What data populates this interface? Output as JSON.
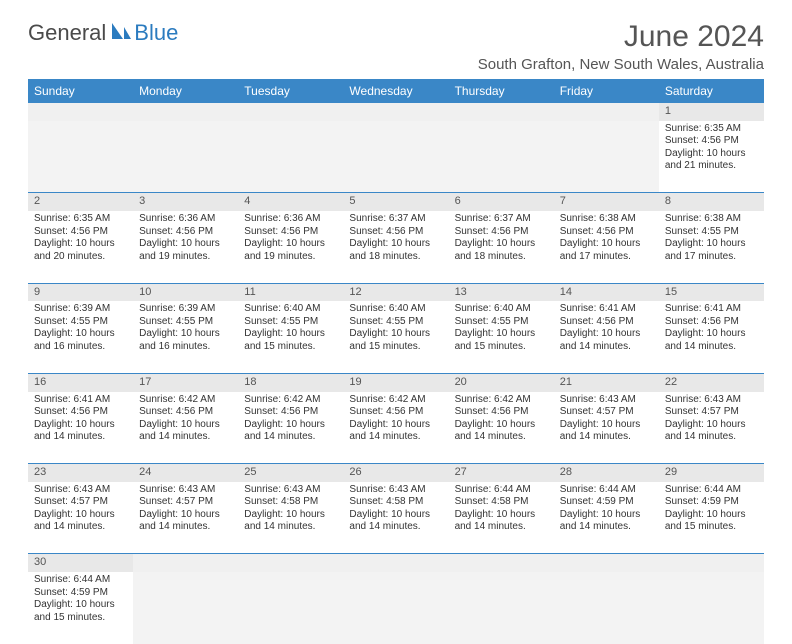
{
  "logo": {
    "part1": "General",
    "part2": "Blue"
  },
  "title": "June 2024",
  "location": "South Grafton, New South Wales, Australia",
  "header_bg": "#3a87c7",
  "daynum_bg": "#e8e8e8",
  "days": [
    "Sunday",
    "Monday",
    "Tuesday",
    "Wednesday",
    "Thursday",
    "Friday",
    "Saturday"
  ],
  "weeks": [
    [
      null,
      null,
      null,
      null,
      null,
      null,
      {
        "n": "1",
        "r": "6:35 AM",
        "s": "4:56 PM",
        "d": "10 hours and 21 minutes."
      }
    ],
    [
      {
        "n": "2",
        "r": "6:35 AM",
        "s": "4:56 PM",
        "d": "10 hours and 20 minutes."
      },
      {
        "n": "3",
        "r": "6:36 AM",
        "s": "4:56 PM",
        "d": "10 hours and 19 minutes."
      },
      {
        "n": "4",
        "r": "6:36 AM",
        "s": "4:56 PM",
        "d": "10 hours and 19 minutes."
      },
      {
        "n": "5",
        "r": "6:37 AM",
        "s": "4:56 PM",
        "d": "10 hours and 18 minutes."
      },
      {
        "n": "6",
        "r": "6:37 AM",
        "s": "4:56 PM",
        "d": "10 hours and 18 minutes."
      },
      {
        "n": "7",
        "r": "6:38 AM",
        "s": "4:56 PM",
        "d": "10 hours and 17 minutes."
      },
      {
        "n": "8",
        "r": "6:38 AM",
        "s": "4:55 PM",
        "d": "10 hours and 17 minutes."
      }
    ],
    [
      {
        "n": "9",
        "r": "6:39 AM",
        "s": "4:55 PM",
        "d": "10 hours and 16 minutes."
      },
      {
        "n": "10",
        "r": "6:39 AM",
        "s": "4:55 PM",
        "d": "10 hours and 16 minutes."
      },
      {
        "n": "11",
        "r": "6:40 AM",
        "s": "4:55 PM",
        "d": "10 hours and 15 minutes."
      },
      {
        "n": "12",
        "r": "6:40 AM",
        "s": "4:55 PM",
        "d": "10 hours and 15 minutes."
      },
      {
        "n": "13",
        "r": "6:40 AM",
        "s": "4:55 PM",
        "d": "10 hours and 15 minutes."
      },
      {
        "n": "14",
        "r": "6:41 AM",
        "s": "4:56 PM",
        "d": "10 hours and 14 minutes."
      },
      {
        "n": "15",
        "r": "6:41 AM",
        "s": "4:56 PM",
        "d": "10 hours and 14 minutes."
      }
    ],
    [
      {
        "n": "16",
        "r": "6:41 AM",
        "s": "4:56 PM",
        "d": "10 hours and 14 minutes."
      },
      {
        "n": "17",
        "r": "6:42 AM",
        "s": "4:56 PM",
        "d": "10 hours and 14 minutes."
      },
      {
        "n": "18",
        "r": "6:42 AM",
        "s": "4:56 PM",
        "d": "10 hours and 14 minutes."
      },
      {
        "n": "19",
        "r": "6:42 AM",
        "s": "4:56 PM",
        "d": "10 hours and 14 minutes."
      },
      {
        "n": "20",
        "r": "6:42 AM",
        "s": "4:56 PM",
        "d": "10 hours and 14 minutes."
      },
      {
        "n": "21",
        "r": "6:43 AM",
        "s": "4:57 PM",
        "d": "10 hours and 14 minutes."
      },
      {
        "n": "22",
        "r": "6:43 AM",
        "s": "4:57 PM",
        "d": "10 hours and 14 minutes."
      }
    ],
    [
      {
        "n": "23",
        "r": "6:43 AM",
        "s": "4:57 PM",
        "d": "10 hours and 14 minutes."
      },
      {
        "n": "24",
        "r": "6:43 AM",
        "s": "4:57 PM",
        "d": "10 hours and 14 minutes."
      },
      {
        "n": "25",
        "r": "6:43 AM",
        "s": "4:58 PM",
        "d": "10 hours and 14 minutes."
      },
      {
        "n": "26",
        "r": "6:43 AM",
        "s": "4:58 PM",
        "d": "10 hours and 14 minutes."
      },
      {
        "n": "27",
        "r": "6:44 AM",
        "s": "4:58 PM",
        "d": "10 hours and 14 minutes."
      },
      {
        "n": "28",
        "r": "6:44 AM",
        "s": "4:59 PM",
        "d": "10 hours and 14 minutes."
      },
      {
        "n": "29",
        "r": "6:44 AM",
        "s": "4:59 PM",
        "d": "10 hours and 15 minutes."
      }
    ],
    [
      {
        "n": "30",
        "r": "6:44 AM",
        "s": "4:59 PM",
        "d": "10 hours and 15 minutes."
      },
      null,
      null,
      null,
      null,
      null,
      null
    ]
  ],
  "labels": {
    "sunrise": "Sunrise: ",
    "sunset": "Sunset: ",
    "daylight": "Daylight: "
  }
}
